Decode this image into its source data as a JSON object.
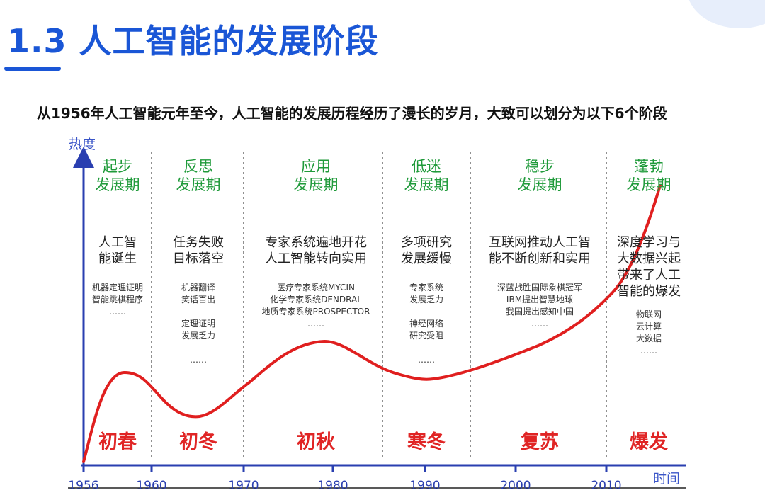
{
  "slide": {
    "title": "1.3 人工智能的发展阶段",
    "subtitle": "从1956年人工智能元年至今，人工智能的发展历程经历了漫长的岁月，大致可以划分为以下6个阶段"
  },
  "diagram": {
    "y_axis_label": "热度",
    "x_axis_label": "时间",
    "years": [
      "1956",
      "1960",
      "1970",
      "1980",
      "1990",
      "2000",
      "2010"
    ],
    "phases": [
      {
        "title_lines": [
          "起步",
          "发展期"
        ],
        "event_lines": [
          "人工智",
          "能诞生"
        ],
        "detail_lines": [
          "机器定理证明",
          "智能跳棋程序",
          "……"
        ],
        "season": "初春"
      },
      {
        "title_lines": [
          "反思",
          "发展期"
        ],
        "event_lines": [
          "任务失败",
          "目标落空"
        ],
        "detail_lines": [
          "机器翻译",
          "笑话百出",
          "",
          "定理证明",
          "发展乏力",
          "",
          "……"
        ],
        "season": "初冬"
      },
      {
        "title_lines": [
          "应用",
          "发展期"
        ],
        "event_lines": [
          "专家系统遍地开花",
          "人工智能转向实用"
        ],
        "detail_lines": [
          "医疗专家系统MYCIN",
          "化学专家系统DENDRAL",
          "地质专家系统PROSPECTOR",
          "……"
        ],
        "season": "初秋"
      },
      {
        "title_lines": [
          "低迷",
          "发展期"
        ],
        "event_lines": [
          "多项研究",
          "发展缓慢"
        ],
        "detail_lines": [
          "专家系统",
          "发展乏力",
          "",
          "神经网络",
          "研究受阻",
          "",
          "……"
        ],
        "season": "寒冬"
      },
      {
        "title_lines": [
          "稳步",
          "发展期"
        ],
        "event_lines": [
          "互联网推动人工智",
          "能不断创新和实用"
        ],
        "detail_lines": [
          "深蓝战胜国际象棋冠军",
          "IBM提出智慧地球",
          "我国提出感知中国",
          "……"
        ],
        "season": "复苏"
      },
      {
        "title_lines": [
          "蓬勃",
          "发展期"
        ],
        "event_lines": [
          "深度学习与",
          "大数据兴起",
          "带来了人工",
          "智能的爆发"
        ],
        "detail_lines": [
          "物联网",
          "云计算",
          "大数据",
          "……"
        ],
        "season": "爆发"
      }
    ],
    "colors": {
      "axis": "#2a3fb0",
      "curve": "#e01f1f",
      "phase_title": "#1f9a3a",
      "season": "#e02525",
      "divider": "#555555"
    }
  }
}
